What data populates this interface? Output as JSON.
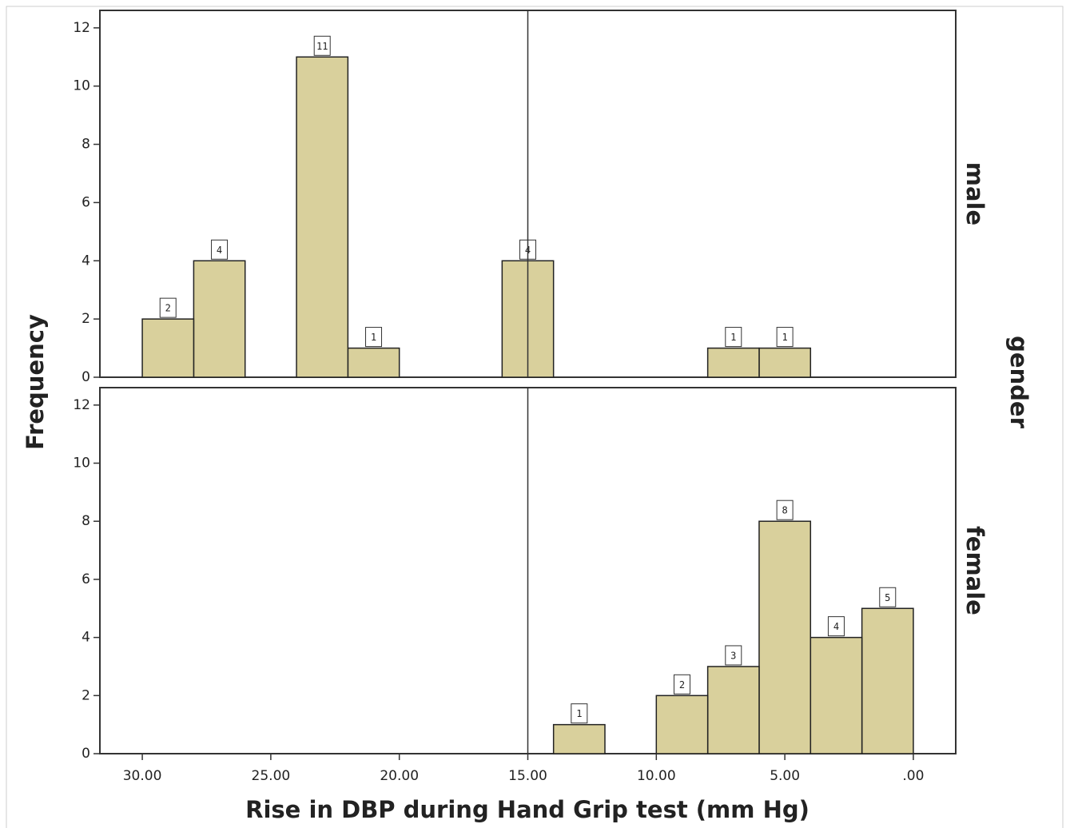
{
  "chart_data": {
    "type": "histogram",
    "x_label": "Rise in DBP during Hand Grip test (mm Hg)",
    "y_label": "Frequency",
    "facet_title": "gender",
    "bins": [
      0,
      2,
      4,
      6,
      8,
      10,
      12,
      14,
      16,
      18,
      20,
      22,
      24,
      26,
      28,
      30
    ],
    "series": [
      {
        "name": "male",
        "color": "#d9d09c",
        "values": [
          0,
          0,
          1,
          1,
          0,
          0,
          0,
          4,
          0,
          0,
          1,
          11,
          0,
          4,
          2
        ]
      },
      {
        "name": "female",
        "color": "#d9d09c",
        "values": [
          5,
          4,
          8,
          3,
          2,
          0,
          1,
          0,
          0,
          0,
          0,
          0,
          0,
          0,
          0
        ]
      }
    ],
    "xlim": [
      31.65,
      -1.65
    ],
    "xticks": [
      {
        "value": 30,
        "label": "30.00"
      },
      {
        "value": 25,
        "label": "25.00"
      },
      {
        "value": 20,
        "label": "20.00"
      },
      {
        "value": 15,
        "label": "15.00"
      },
      {
        "value": 10,
        "label": "10.00"
      },
      {
        "value": 5,
        "label": "5.00"
      },
      {
        "value": 0,
        "label": ".00"
      }
    ],
    "ylim": [
      0,
      12.6
    ],
    "yticks": [
      0,
      2,
      4,
      6,
      8,
      10,
      12
    ],
    "reference_x": 15,
    "data_labels": true
  }
}
